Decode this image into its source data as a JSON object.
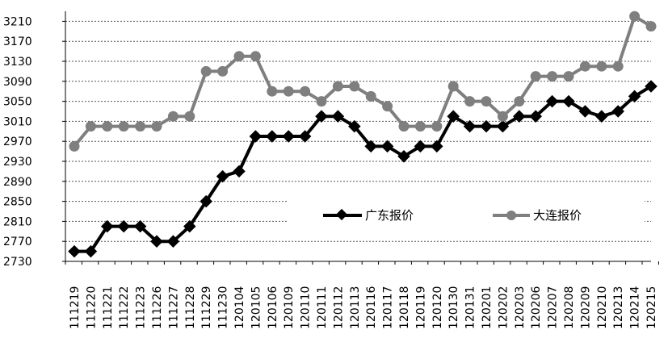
{
  "chart_data": {
    "type": "line",
    "title": "",
    "xlabel": "",
    "ylabel": "",
    "ylim": [
      2730,
      3230
    ],
    "yticks": [
      2730,
      2770,
      2810,
      2850,
      2890,
      2930,
      2970,
      3010,
      3050,
      3090,
      3130,
      3170,
      3210
    ],
    "grid": "horizontal dashed",
    "legend_position": "right-middle",
    "categories": [
      "111219",
      "111220",
      "111221",
      "111222",
      "111223",
      "111226",
      "111227",
      "111228",
      "111229",
      "111230",
      "120104",
      "120105",
      "120106",
      "120109",
      "120110",
      "120111",
      "120112",
      "120113",
      "120116",
      "120117",
      "120118",
      "120119",
      "120120",
      "120130",
      "120131",
      "120201",
      "120202",
      "120203",
      "120206",
      "120207",
      "120208",
      "120209",
      "120210",
      "120213",
      "120214",
      "120215"
    ],
    "series": [
      {
        "name": "广东报价",
        "color": "#000000",
        "marker": "diamond",
        "values": [
          2750,
          2750,
          2800,
          2800,
          2800,
          2770,
          2770,
          2800,
          2850,
          2900,
          2910,
          2980,
          2980,
          2980,
          2980,
          3020,
          3020,
          3000,
          2960,
          2960,
          2940,
          2960,
          2960,
          3020,
          3000,
          3000,
          3000,
          3020,
          3020,
          3050,
          3050,
          3030,
          3020,
          3030,
          3060,
          3080
        ]
      },
      {
        "name": "大连报价",
        "color": "#7f7f7f",
        "marker": "circle",
        "values": [
          2960,
          3000,
          3000,
          3000,
          3000,
          3000,
          3020,
          3020,
          3110,
          3110,
          3140,
          3140,
          3070,
          3070,
          3070,
          3050,
          3080,
          3080,
          3060,
          3040,
          3000,
          3000,
          3000,
          3080,
          3050,
          3050,
          3020,
          3050,
          3100,
          3100,
          3100,
          3120,
          3120,
          3120,
          3220,
          3200
        ]
      }
    ]
  }
}
